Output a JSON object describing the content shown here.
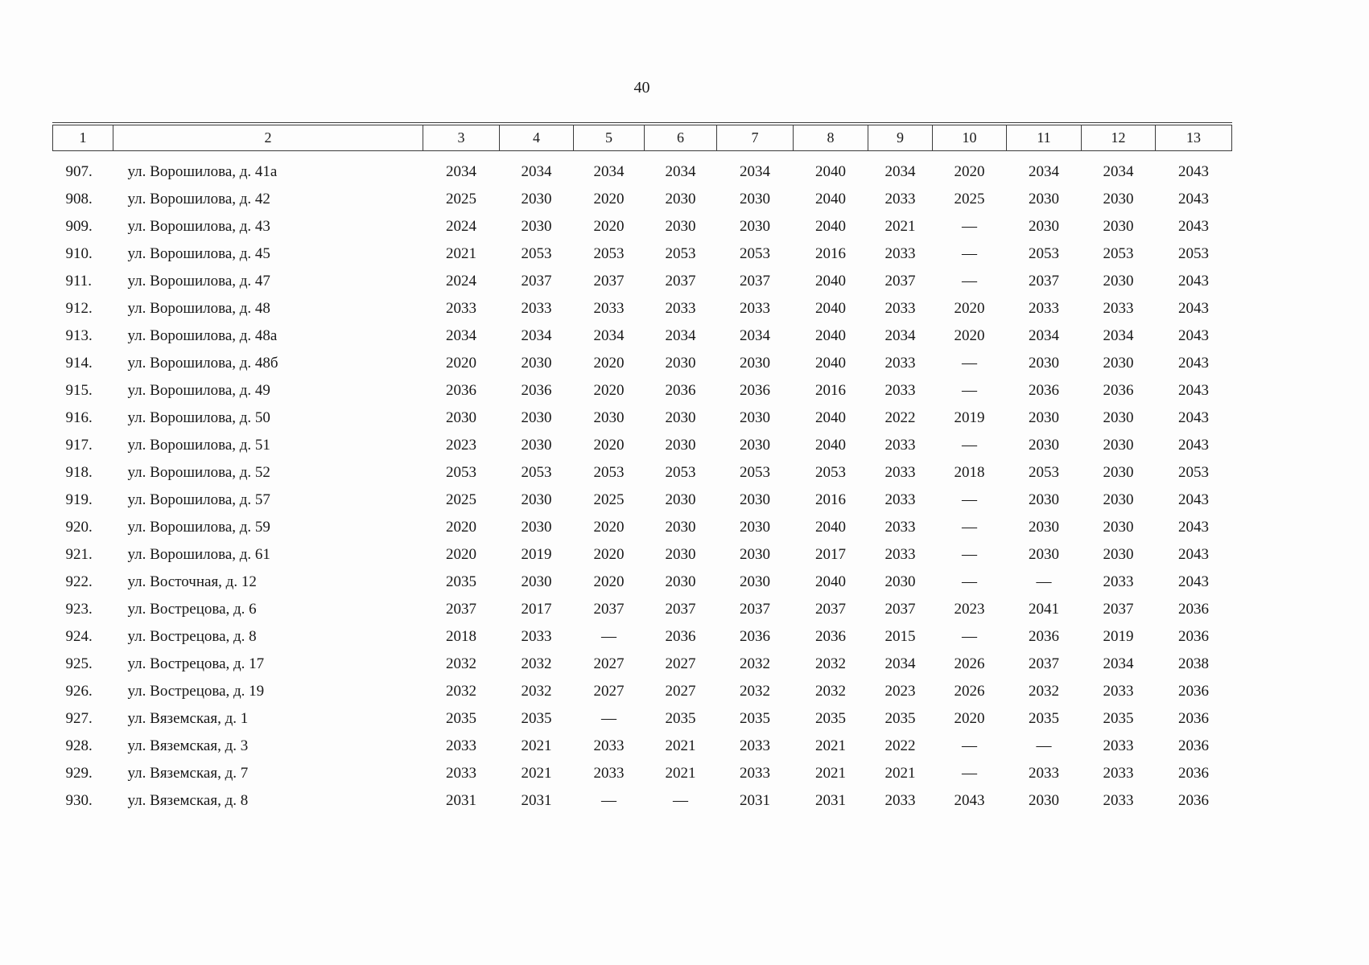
{
  "page": {
    "number": "40"
  },
  "table": {
    "header": [
      "1",
      "2",
      "3",
      "4",
      "5",
      "6",
      "7",
      "8",
      "9",
      "10",
      "11",
      "12",
      "13"
    ],
    "rows": [
      {
        "num": "907.",
        "address": "ул. Ворошилова, д. 41а",
        "values": [
          "2034",
          "2034",
          "2034",
          "2034",
          "2034",
          "2040",
          "2034",
          "2020",
          "2034",
          "2034",
          "2043"
        ]
      },
      {
        "num": "908.",
        "address": "ул. Ворошилова, д. 42",
        "values": [
          "2025",
          "2030",
          "2020",
          "2030",
          "2030",
          "2040",
          "2033",
          "2025",
          "2030",
          "2030",
          "2043"
        ]
      },
      {
        "num": "909.",
        "address": "ул. Ворошилова, д. 43",
        "values": [
          "2024",
          "2030",
          "2020",
          "2030",
          "2030",
          "2040",
          "2021",
          "—",
          "2030",
          "2030",
          "2043"
        ]
      },
      {
        "num": "910.",
        "address": "ул. Ворошилова, д. 45",
        "values": [
          "2021",
          "2053",
          "2053",
          "2053",
          "2053",
          "2016",
          "2033",
          "—",
          "2053",
          "2053",
          "2053"
        ]
      },
      {
        "num": "911.",
        "address": "ул. Ворошилова, д. 47",
        "values": [
          "2024",
          "2037",
          "2037",
          "2037",
          "2037",
          "2040",
          "2037",
          "—",
          "2037",
          "2030",
          "2043"
        ]
      },
      {
        "num": "912.",
        "address": "ул. Ворошилова, д. 48",
        "values": [
          "2033",
          "2033",
          "2033",
          "2033",
          "2033",
          "2040",
          "2033",
          "2020",
          "2033",
          "2033",
          "2043"
        ]
      },
      {
        "num": "913.",
        "address": "ул. Ворошилова, д. 48а",
        "values": [
          "2034",
          "2034",
          "2034",
          "2034",
          "2034",
          "2040",
          "2034",
          "2020",
          "2034",
          "2034",
          "2043"
        ]
      },
      {
        "num": "914.",
        "address": "ул. Ворошилова, д. 48б",
        "values": [
          "2020",
          "2030",
          "2020",
          "2030",
          "2030",
          "2040",
          "2033",
          "—",
          "2030",
          "2030",
          "2043"
        ]
      },
      {
        "num": "915.",
        "address": "ул. Ворошилова, д. 49",
        "values": [
          "2036",
          "2036",
          "2020",
          "2036",
          "2036",
          "2016",
          "2033",
          "—",
          "2036",
          "2036",
          "2043"
        ]
      },
      {
        "num": "916.",
        "address": "ул. Ворошилова, д. 50",
        "values": [
          "2030",
          "2030",
          "2030",
          "2030",
          "2030",
          "2040",
          "2022",
          "2019",
          "2030",
          "2030",
          "2043"
        ]
      },
      {
        "num": "917.",
        "address": "ул. Ворошилова, д. 51",
        "values": [
          "2023",
          "2030",
          "2020",
          "2030",
          "2030",
          "2040",
          "2033",
          "—",
          "2030",
          "2030",
          "2043"
        ]
      },
      {
        "num": "918.",
        "address": "ул. Ворошилова, д. 52",
        "values": [
          "2053",
          "2053",
          "2053",
          "2053",
          "2053",
          "2053",
          "2033",
          "2018",
          "2053",
          "2030",
          "2053"
        ]
      },
      {
        "num": "919.",
        "address": "ул. Ворошилова, д. 57",
        "values": [
          "2025",
          "2030",
          "2025",
          "2030",
          "2030",
          "2016",
          "2033",
          "—",
          "2030",
          "2030",
          "2043"
        ]
      },
      {
        "num": "920.",
        "address": "ул. Ворошилова, д. 59",
        "values": [
          "2020",
          "2030",
          "2020",
          "2030",
          "2030",
          "2040",
          "2033",
          "—",
          "2030",
          "2030",
          "2043"
        ]
      },
      {
        "num": "921.",
        "address": "ул. Ворошилова, д. 61",
        "values": [
          "2020",
          "2019",
          "2020",
          "2030",
          "2030",
          "2017",
          "2033",
          "—",
          "2030",
          "2030",
          "2043"
        ]
      },
      {
        "num": "922.",
        "address": "ул. Восточная, д. 12",
        "values": [
          "2035",
          "2030",
          "2020",
          "2030",
          "2030",
          "2040",
          "2030",
          "—",
          "—",
          "2033",
          "2043"
        ]
      },
      {
        "num": "923.",
        "address": "ул. Вострецова, д. 6",
        "values": [
          "2037",
          "2017",
          "2037",
          "2037",
          "2037",
          "2037",
          "2037",
          "2023",
          "2041",
          "2037",
          "2036"
        ]
      },
      {
        "num": "924.",
        "address": "ул. Вострецова, д. 8",
        "values": [
          "2018",
          "2033",
          "—",
          "2036",
          "2036",
          "2036",
          "2015",
          "—",
          "2036",
          "2019",
          "2036"
        ]
      },
      {
        "num": "925.",
        "address": "ул. Вострецова, д. 17",
        "values": [
          "2032",
          "2032",
          "2027",
          "2027",
          "2032",
          "2032",
          "2034",
          "2026",
          "2037",
          "2034",
          "2038"
        ]
      },
      {
        "num": "926.",
        "address": "ул. Вострецова, д. 19",
        "values": [
          "2032",
          "2032",
          "2027",
          "2027",
          "2032",
          "2032",
          "2023",
          "2026",
          "2032",
          "2033",
          "2036"
        ]
      },
      {
        "num": "927.",
        "address": "ул. Вяземская, д. 1",
        "values": [
          "2035",
          "2035",
          "—",
          "2035",
          "2035",
          "2035",
          "2035",
          "2020",
          "2035",
          "2035",
          "2036"
        ]
      },
      {
        "num": "928.",
        "address": "ул. Вяземская, д. 3",
        "values": [
          "2033",
          "2021",
          "2033",
          "2021",
          "2033",
          "2021",
          "2022",
          "—",
          "—",
          "2033",
          "2036"
        ]
      },
      {
        "num": "929.",
        "address": "ул. Вяземская, д. 7",
        "values": [
          "2033",
          "2021",
          "2033",
          "2021",
          "2033",
          "2021",
          "2021",
          "—",
          "2033",
          "2033",
          "2036"
        ]
      },
      {
        "num": "930.",
        "address": "ул. Вяземская, д. 8",
        "values": [
          "2031",
          "2031",
          "—",
          "—",
          "2031",
          "2031",
          "2033",
          "2043",
          "2030",
          "2033",
          "2036"
        ]
      }
    ]
  }
}
